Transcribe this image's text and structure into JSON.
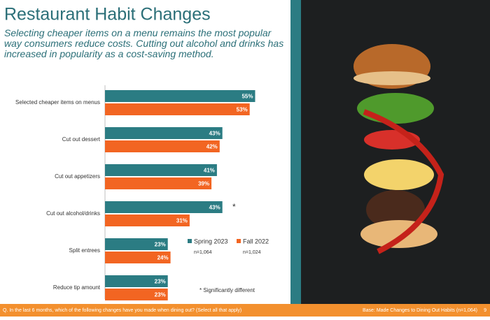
{
  "chart_data": {
    "type": "bar",
    "orientation": "horizontal",
    "title": "Restaurant Habit Changes",
    "subtitle": "Selecting cheaper items on a menu remains the most popular way consumers reduce costs. Cutting out alcohol and drinks has increased in popularity as a cost-saving method.",
    "categories": [
      "Selected cheaper items on menus",
      "Cut out dessert",
      "Cut out appetizers",
      "Cut out alcohol/drinks",
      "Split entrees",
      "Reduce tip amount"
    ],
    "series": [
      {
        "name": "Spring 2023",
        "color": "#2b7c83",
        "n_label": "n=1,064",
        "values": [
          55,
          43,
          41,
          43,
          23,
          23
        ],
        "value_labels": [
          "55%",
          "43%",
          "41%",
          "43%",
          "23%",
          "23%"
        ]
      },
      {
        "name": "Fall 2022",
        "color": "#f26522",
        "n_label": "n=1,024",
        "values": [
          53,
          42,
          39,
          31,
          24,
          23
        ],
        "value_labels": [
          "53%",
          "42%",
          "39%",
          "31%",
          "24%",
          "23%"
        ]
      }
    ],
    "significance_marker": "*",
    "significance_note": "* Significantly different"
  },
  "footer": {
    "question": "Q. In the last 6 months, which of the following changes have you made when dining out? (Select all that apply)",
    "base": "Base: Made Changes to Dining Out Habits (n=1,064)",
    "page": 9
  }
}
